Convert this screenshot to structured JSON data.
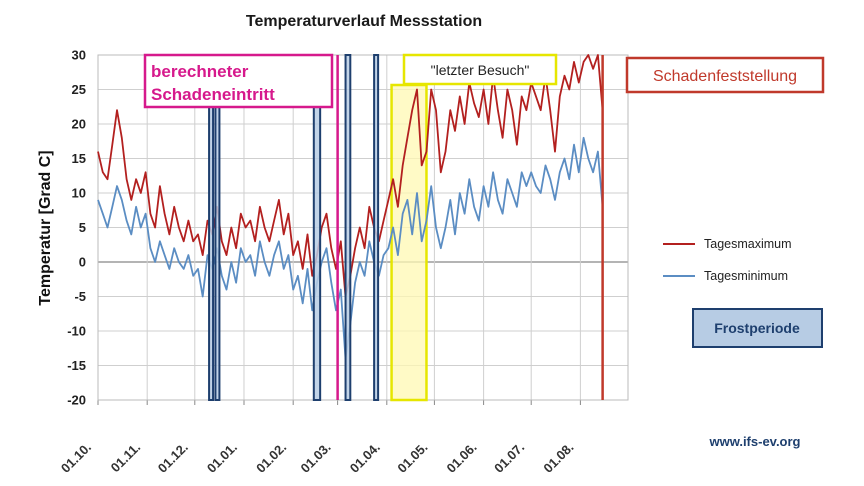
{
  "chart_data": {
    "type": "line",
    "title": "Temperaturverlauf  Messstation",
    "ylabel": "Temperatur  [Grad C]",
    "xlabel": "",
    "ylim": [
      -20,
      30
    ],
    "yticks": [
      30,
      25,
      20,
      15,
      10,
      5,
      0,
      -5,
      -10,
      -15,
      -20
    ],
    "xlim": [
      "2000-10-01",
      "2001-08-31"
    ],
    "xtick_labels": [
      "01.10.",
      "01.11.",
      "01.12.",
      "01.01.",
      "01.02.",
      "01.03.",
      "01.04.",
      "01.05.",
      "01.06.",
      "01.07.",
      "01.08."
    ],
    "xtick_dates": [
      "2000-10-01",
      "2000-11-01",
      "2000-12-01",
      "2001-01-01",
      "2001-02-01",
      "2001-03-01",
      "2001-04-01",
      "2001-05-01",
      "2001-06-01",
      "2001-07-01",
      "2001-08-01"
    ],
    "grid": true,
    "legend": "right",
    "series": [
      {
        "name": "Tagesmaximum",
        "color": "#b3201f",
        "points": [
          [
            "2000-10-01",
            16
          ],
          [
            "2000-10-04",
            13
          ],
          [
            "2000-10-07",
            12
          ],
          [
            "2000-10-10",
            17
          ],
          [
            "2000-10-13",
            22
          ],
          [
            "2000-10-16",
            18
          ],
          [
            "2000-10-19",
            12
          ],
          [
            "2000-10-22",
            9
          ],
          [
            "2000-10-25",
            12
          ],
          [
            "2000-10-28",
            10
          ],
          [
            "2000-10-31",
            13
          ],
          [
            "2000-11-03",
            7
          ],
          [
            "2000-11-06",
            5
          ],
          [
            "2000-11-09",
            11
          ],
          [
            "2000-11-12",
            7
          ],
          [
            "2000-11-15",
            4
          ],
          [
            "2000-11-18",
            8
          ],
          [
            "2000-11-21",
            5
          ],
          [
            "2000-11-24",
            3
          ],
          [
            "2000-11-27",
            6
          ],
          [
            "2000-11-30",
            3
          ],
          [
            "2000-12-03",
            4
          ],
          [
            "2000-12-06",
            1
          ],
          [
            "2000-12-09",
            6
          ],
          [
            "2000-12-12",
            4
          ],
          [
            "2000-12-15",
            8
          ],
          [
            "2000-12-18",
            3
          ],
          [
            "2000-12-21",
            1
          ],
          [
            "2000-12-24",
            5
          ],
          [
            "2000-12-27",
            2
          ],
          [
            "2000-12-30",
            7
          ],
          [
            "2001-01-02",
            5
          ],
          [
            "2001-01-05",
            6
          ],
          [
            "2001-01-08",
            3
          ],
          [
            "2001-01-11",
            8
          ],
          [
            "2001-01-14",
            5
          ],
          [
            "2001-01-17",
            3
          ],
          [
            "2001-01-20",
            6
          ],
          [
            "2001-01-23",
            9
          ],
          [
            "2001-01-26",
            4
          ],
          [
            "2001-01-29",
            7
          ],
          [
            "2001-02-01",
            1
          ],
          [
            "2001-02-04",
            3
          ],
          [
            "2001-02-07",
            -1
          ],
          [
            "2001-02-10",
            4
          ],
          [
            "2001-02-13",
            -2
          ],
          [
            "2001-02-16",
            1
          ],
          [
            "2001-02-19",
            5
          ],
          [
            "2001-02-22",
            7
          ],
          [
            "2001-02-25",
            2
          ],
          [
            "2001-02-28",
            -1
          ],
          [
            "2001-03-03",
            3
          ],
          [
            "2001-03-06",
            -5
          ],
          [
            "2001-03-09",
            -2
          ],
          [
            "2001-03-12",
            2
          ],
          [
            "2001-03-15",
            5
          ],
          [
            "2001-03-18",
            2
          ],
          [
            "2001-03-21",
            8
          ],
          [
            "2001-03-24",
            5
          ],
          [
            "2001-03-27",
            3
          ],
          [
            "2001-03-30",
            6
          ],
          [
            "2001-04-02",
            9
          ],
          [
            "2001-04-05",
            12
          ],
          [
            "2001-04-08",
            8
          ],
          [
            "2001-04-11",
            14
          ],
          [
            "2001-04-14",
            18
          ],
          [
            "2001-04-17",
            22
          ],
          [
            "2001-04-20",
            25
          ],
          [
            "2001-04-23",
            14
          ],
          [
            "2001-04-26",
            16
          ],
          [
            "2001-04-29",
            25
          ],
          [
            "2001-05-02",
            22
          ],
          [
            "2001-05-05",
            13
          ],
          [
            "2001-05-08",
            16
          ],
          [
            "2001-05-11",
            22
          ],
          [
            "2001-05-14",
            19
          ],
          [
            "2001-05-17",
            24
          ],
          [
            "2001-05-20",
            20
          ],
          [
            "2001-05-23",
            26
          ],
          [
            "2001-05-26",
            23
          ],
          [
            "2001-05-29",
            21
          ],
          [
            "2001-06-01",
            25
          ],
          [
            "2001-06-04",
            20
          ],
          [
            "2001-06-07",
            27
          ],
          [
            "2001-06-10",
            22
          ],
          [
            "2001-06-13",
            18
          ],
          [
            "2001-06-16",
            25
          ],
          [
            "2001-06-19",
            22
          ],
          [
            "2001-06-22",
            17
          ],
          [
            "2001-06-25",
            24
          ],
          [
            "2001-06-28",
            22
          ],
          [
            "2001-07-01",
            26
          ],
          [
            "2001-07-04",
            24
          ],
          [
            "2001-07-07",
            22
          ],
          [
            "2001-07-10",
            27
          ],
          [
            "2001-07-13",
            22
          ],
          [
            "2001-07-16",
            16
          ],
          [
            "2001-07-19",
            24
          ],
          [
            "2001-07-22",
            27
          ],
          [
            "2001-07-25",
            25
          ],
          [
            "2001-07-28",
            29
          ],
          [
            "2001-07-31",
            26
          ],
          [
            "2001-08-03",
            29
          ],
          [
            "2001-08-06",
            30
          ],
          [
            "2001-08-09",
            28
          ],
          [
            "2001-08-12",
            30
          ],
          [
            "2001-08-15",
            22
          ]
        ]
      },
      {
        "name": "Tagesminimum",
        "color": "#5b8dc3",
        "points": [
          [
            "2000-10-01",
            9
          ],
          [
            "2000-10-04",
            7
          ],
          [
            "2000-10-07",
            5
          ],
          [
            "2000-10-10",
            8
          ],
          [
            "2000-10-13",
            11
          ],
          [
            "2000-10-16",
            9
          ],
          [
            "2000-10-19",
            6
          ],
          [
            "2000-10-22",
            4
          ],
          [
            "2000-10-25",
            8
          ],
          [
            "2000-10-28",
            5
          ],
          [
            "2000-10-31",
            7
          ],
          [
            "2000-11-03",
            2
          ],
          [
            "2000-11-06",
            0
          ],
          [
            "2000-11-09",
            3
          ],
          [
            "2000-11-12",
            1
          ],
          [
            "2000-11-15",
            -1
          ],
          [
            "2000-11-18",
            2
          ],
          [
            "2000-11-21",
            0
          ],
          [
            "2000-11-24",
            -1
          ],
          [
            "2000-11-27",
            1
          ],
          [
            "2000-11-30",
            -2
          ],
          [
            "2000-12-03",
            -1
          ],
          [
            "2000-12-06",
            -5
          ],
          [
            "2000-12-09",
            1
          ],
          [
            "2000-12-12",
            -1
          ],
          [
            "2000-12-15",
            2
          ],
          [
            "2000-12-18",
            -2
          ],
          [
            "2000-12-21",
            -4
          ],
          [
            "2000-12-24",
            0
          ],
          [
            "2000-12-27",
            -3
          ],
          [
            "2000-12-30",
            2
          ],
          [
            "2001-01-02",
            0
          ],
          [
            "2001-01-05",
            1
          ],
          [
            "2001-01-08",
            -2
          ],
          [
            "2001-01-11",
            3
          ],
          [
            "2001-01-14",
            0
          ],
          [
            "2001-01-17",
            -2
          ],
          [
            "2001-01-20",
            1
          ],
          [
            "2001-01-23",
            3
          ],
          [
            "2001-01-26",
            -1
          ],
          [
            "2001-01-29",
            1
          ],
          [
            "2001-02-01",
            -4
          ],
          [
            "2001-02-04",
            -2
          ],
          [
            "2001-02-07",
            -6
          ],
          [
            "2001-02-10",
            -1
          ],
          [
            "2001-02-13",
            -7
          ],
          [
            "2001-02-16",
            -3
          ],
          [
            "2001-02-19",
            0
          ],
          [
            "2001-02-22",
            2
          ],
          [
            "2001-02-25",
            -3
          ],
          [
            "2001-02-28",
            -7
          ],
          [
            "2001-03-03",
            -4
          ],
          [
            "2001-03-06",
            -14
          ],
          [
            "2001-03-09",
            -9
          ],
          [
            "2001-03-12",
            -3
          ],
          [
            "2001-03-15",
            0
          ],
          [
            "2001-03-18",
            -2
          ],
          [
            "2001-03-21",
            3
          ],
          [
            "2001-03-24",
            0
          ],
          [
            "2001-03-27",
            -2
          ],
          [
            "2001-03-30",
            1
          ],
          [
            "2001-04-02",
            2
          ],
          [
            "2001-04-05",
            5
          ],
          [
            "2001-04-08",
            1
          ],
          [
            "2001-04-11",
            7
          ],
          [
            "2001-04-14",
            9
          ],
          [
            "2001-04-17",
            4
          ],
          [
            "2001-04-20",
            10
          ],
          [
            "2001-04-23",
            3
          ],
          [
            "2001-04-26",
            6
          ],
          [
            "2001-04-29",
            11
          ],
          [
            "2001-05-02",
            5
          ],
          [
            "2001-05-05",
            2
          ],
          [
            "2001-05-08",
            5
          ],
          [
            "2001-05-11",
            9
          ],
          [
            "2001-05-14",
            4
          ],
          [
            "2001-05-17",
            10
          ],
          [
            "2001-05-20",
            7
          ],
          [
            "2001-05-23",
            12
          ],
          [
            "2001-05-26",
            8
          ],
          [
            "2001-05-29",
            6
          ],
          [
            "2001-06-01",
            11
          ],
          [
            "2001-06-04",
            8
          ],
          [
            "2001-06-07",
            13
          ],
          [
            "2001-06-10",
            9
          ],
          [
            "2001-06-13",
            7
          ],
          [
            "2001-06-16",
            12
          ],
          [
            "2001-06-19",
            10
          ],
          [
            "2001-06-22",
            8
          ],
          [
            "2001-06-25",
            13
          ],
          [
            "2001-06-28",
            11
          ],
          [
            "2001-07-01",
            13
          ],
          [
            "2001-07-04",
            11
          ],
          [
            "2001-07-07",
            10
          ],
          [
            "2001-07-10",
            14
          ],
          [
            "2001-07-13",
            12
          ],
          [
            "2001-07-16",
            9
          ],
          [
            "2001-07-19",
            13
          ],
          [
            "2001-07-22",
            15
          ],
          [
            "2001-07-25",
            12
          ],
          [
            "2001-07-28",
            17
          ],
          [
            "2001-07-31",
            13
          ],
          [
            "2001-08-03",
            18
          ],
          [
            "2001-08-06",
            15
          ],
          [
            "2001-08-09",
            13
          ],
          [
            "2001-08-12",
            16
          ],
          [
            "2001-08-15",
            8
          ]
        ]
      }
    ],
    "frost_periods": [
      [
        "2000-12-10",
        "2000-12-12"
      ],
      [
        "2000-12-14",
        "2000-12-16"
      ],
      [
        "2001-02-14",
        "2001-02-18"
      ],
      [
        "2001-03-06",
        "2001-03-09"
      ],
      [
        "2001-03-24",
        "2001-03-26"
      ]
    ],
    "markers": [
      {
        "date": "2001-03-01",
        "color": "#d6198c"
      },
      {
        "date": "2001-08-15",
        "color": "#c0392b"
      }
    ],
    "visit_period": {
      "start": "2001-04-04",
      "end": "2001-04-26",
      "fill": "#fff8b3",
      "stroke": "#e6e600"
    }
  },
  "annotations": {
    "schadeneintritt_line1": "berechneter",
    "schadeneintritt_line2": "Schadeneintritt",
    "letzter_besuch": "\"letzter Besuch\"",
    "schadenfeststellung": "Schadenfeststellung",
    "frostperiode": "Frostperiode"
  },
  "legend": {
    "max_label": "Tagesmaximum",
    "min_label": "Tagesminimum"
  },
  "watermark": "www.ifs-ev.org",
  "colors": {
    "max_line": "#b3201f",
    "min_line": "#5b8dc3",
    "frost_fill": "#b7cce4",
    "frost_stroke": "#1e3f6e",
    "schadeneintritt": "#d6198c",
    "besuch": "#e6e600",
    "schadenfeststellung": "#c0392b"
  }
}
